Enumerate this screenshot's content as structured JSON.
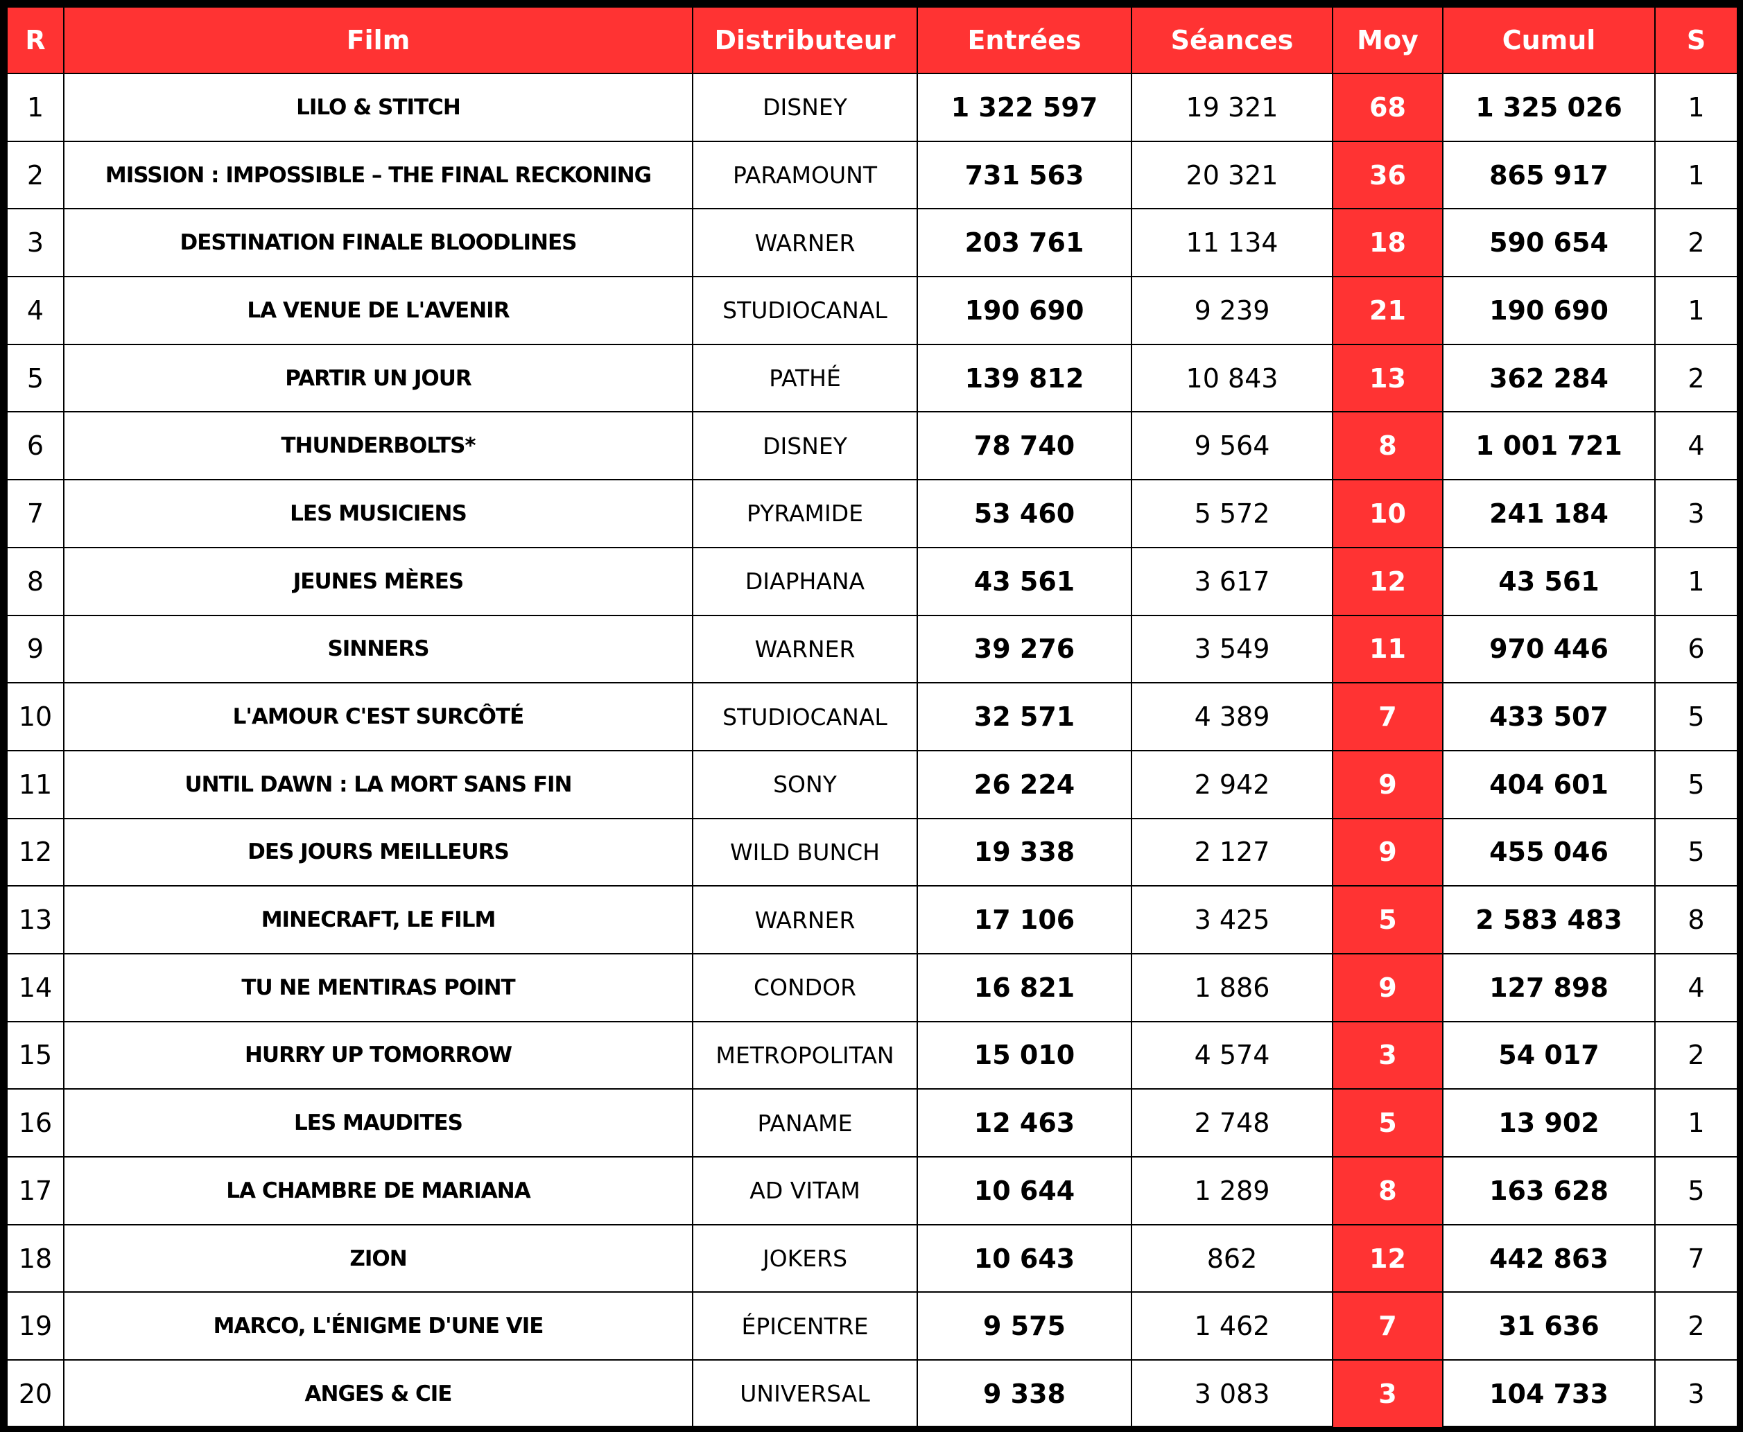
{
  "table": {
    "header": [
      "R",
      "Film",
      "Distributeur",
      "Entrées",
      "Séances",
      "Moy",
      "Cumul",
      "S"
    ],
    "rows": [
      [
        "1",
        "LILO & STITCH",
        "DISNEY",
        "1 322 597",
        "19 321",
        "68",
        "1 325 026",
        "1"
      ],
      [
        "2",
        "MISSION : IMPOSSIBLE – THE FINAL RECKONING",
        "PARAMOUNT",
        "731 563",
        "20 321",
        "36",
        "865 917",
        "1"
      ],
      [
        "3",
        "DESTINATION FINALE BLOODLINES",
        "WARNER",
        "203 761",
        "11 134",
        "18",
        "590 654",
        "2"
      ],
      [
        "4",
        "LA VENUE DE L'AVENIR",
        "STUDIOCANAL",
        "190 690",
        "9 239",
        "21",
        "190 690",
        "1"
      ],
      [
        "5",
        "PARTIR UN JOUR",
        "PATHÉ",
        "139 812",
        "10 843",
        "13",
        "362 284",
        "2"
      ],
      [
        "6",
        "THUNDERBOLTS*",
        "DISNEY",
        "78 740",
        "9 564",
        "8",
        "1 001 721",
        "4"
      ],
      [
        "7",
        "LES MUSICIENS",
        "PYRAMIDE",
        "53 460",
        "5 572",
        "10",
        "241 184",
        "3"
      ],
      [
        "8",
        "JEUNES MÈRES",
        "DIAPHANA",
        "43 561",
        "3 617",
        "12",
        "43 561",
        "1"
      ],
      [
        "9",
        "SINNERS",
        "WARNER",
        "39 276",
        "3 549",
        "11",
        "970 446",
        "6"
      ],
      [
        "10",
        "L'AMOUR C'EST SURCÔTÉ",
        "STUDIOCANAL",
        "32 571",
        "4 389",
        "7",
        "433 507",
        "5"
      ],
      [
        "11",
        "UNTIL DAWN : LA MORT SANS FIN",
        "SONY",
        "26 224",
        "2 942",
        "9",
        "404 601",
        "5"
      ],
      [
        "12",
        "DES JOURS MEILLEURS",
        "WILD BUNCH",
        "19 338",
        "2 127",
        "9",
        "455 046",
        "5"
      ],
      [
        "13",
        "MINECRAFT, LE FILM",
        "WARNER",
        "17 106",
        "3 425",
        "5",
        "2 583 483",
        "8"
      ],
      [
        "14",
        "TU NE MENTIRAS POINT",
        "CONDOR",
        "16 821",
        "1 886",
        "9",
        "127 898",
        "4"
      ],
      [
        "15",
        "HURRY UP TOMORROW",
        "METROPOLITAN",
        "15 010",
        "4 574",
        "3",
        "54 017",
        "2"
      ],
      [
        "16",
        "LES MAUDITES",
        "PANAME",
        "12 463",
        "2 748",
        "5",
        "13 902",
        "1"
      ],
      [
        "17",
        "LA CHAMBRE DE MARIANA",
        "AD VITAM",
        "10 644",
        "1 289",
        "8",
        "163 628",
        "5"
      ],
      [
        "18",
        "ZION",
        "JOKERS",
        "10 643",
        "862",
        "12",
        "442 863",
        "7"
      ],
      [
        "19",
        "MARCO, L'ÉNIGME D'UNE VIE",
        "ÉPICENTRE",
        "9 575",
        "1 462",
        "7",
        "31 636",
        "2"
      ],
      [
        "20",
        "ANGES & CIE",
        "UNIVERSAL",
        "9 338",
        "3 083",
        "3",
        "104 733",
        "3"
      ]
    ]
  }
}
